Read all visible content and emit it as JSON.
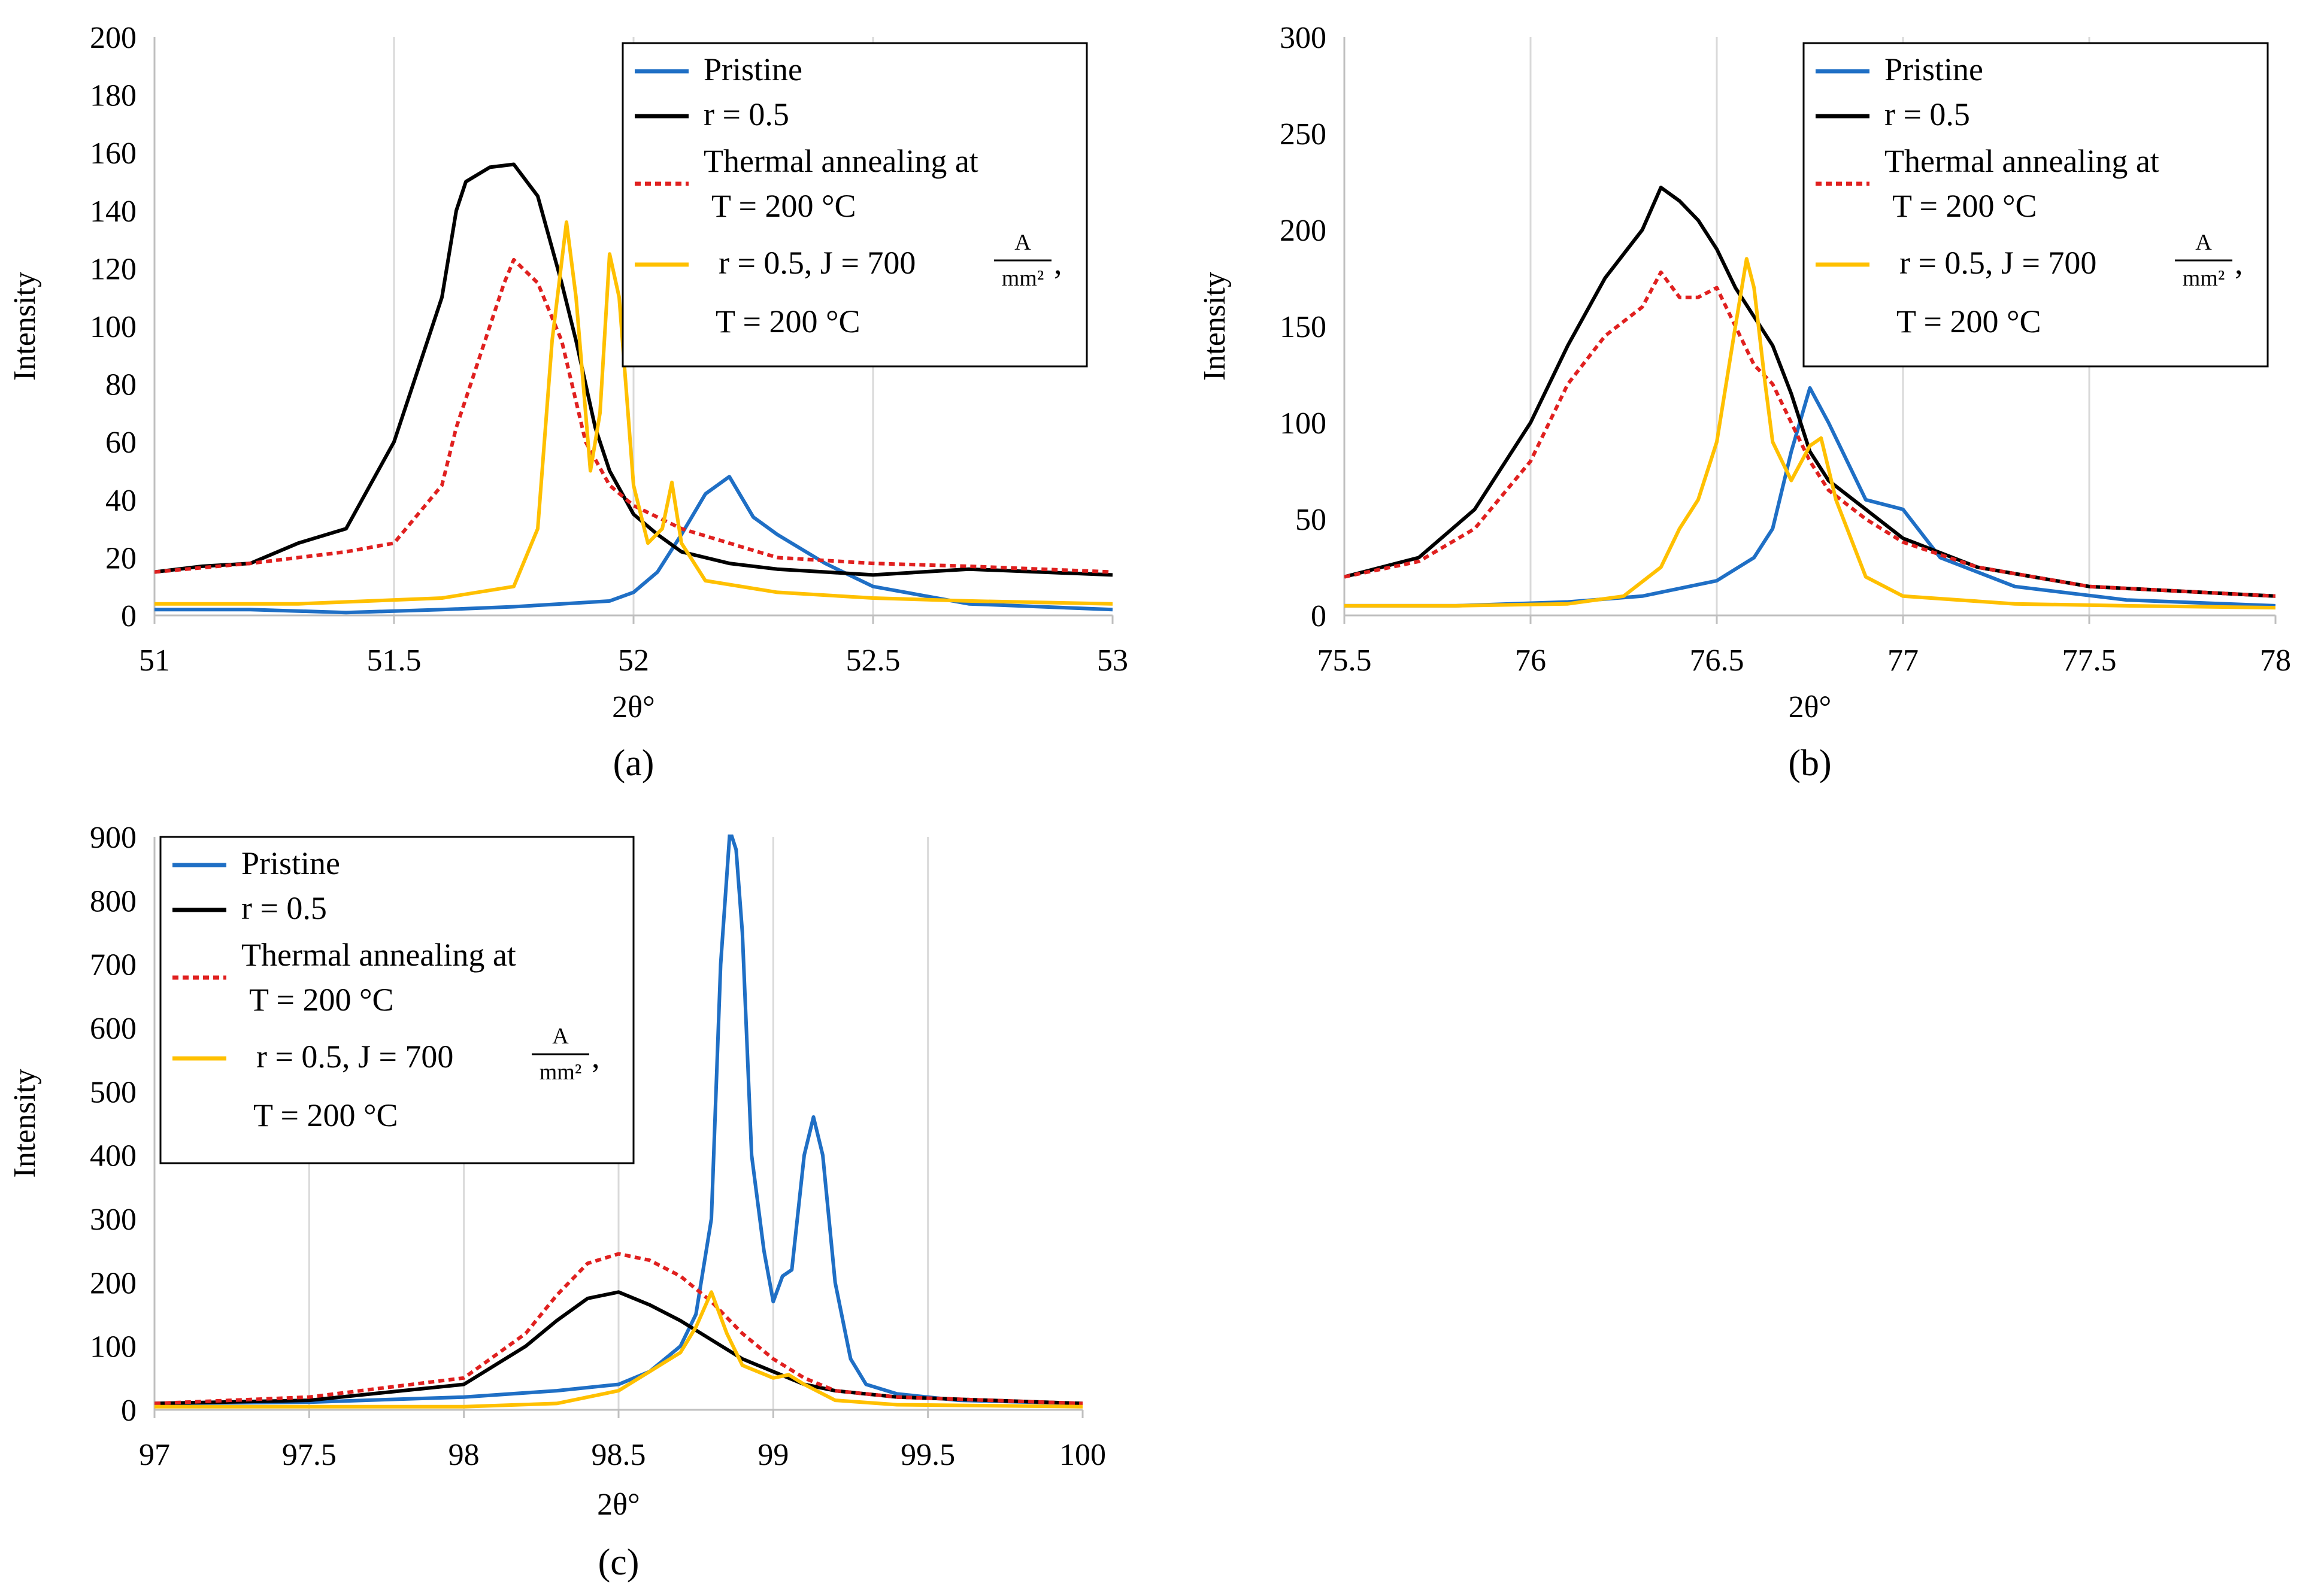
{
  "chart_data": [
    {
      "type": "line",
      "panel_label": "(a)",
      "xlabel": "2θ°",
      "ylabel": "Intensity",
      "xlim": [
        51,
        53
      ],
      "ylim": [
        0,
        200
      ],
      "xticks": [
        51,
        51.5,
        52,
        52.5,
        53
      ],
      "xtick_labels": [
        "51",
        "51.5",
        "52",
        "52.5",
        "53"
      ],
      "yticks": [
        0,
        20,
        40,
        60,
        80,
        100,
        120,
        140,
        160,
        180,
        200
      ],
      "ytick_labels": [
        "0",
        "20",
        "40",
        "60",
        "80",
        "100",
        "120",
        "140",
        "160",
        "180",
        "200"
      ],
      "grid": "vertical",
      "legend_position": "top-right",
      "legend": [
        {
          "text": "Pristine",
          "series": 0
        },
        {
          "text": "r = 0.5",
          "series": 1
        },
        {
          "text": "Thermal annealing at",
          "text2": "T = 200 °C",
          "series": 2
        },
        {
          "text": "r = 0.5, J = 700",
          "frac_num": "A",
          "frac_den": "mm²",
          "suffix": ",",
          "text2": "T = 200 °C",
          "series": 3
        }
      ],
      "series": [
        {
          "color": "#1f6fc5",
          "dash": "none",
          "x": [
            51.0,
            51.2,
            51.4,
            51.6,
            51.75,
            51.85,
            51.95,
            52.0,
            52.05,
            52.1,
            52.15,
            52.2,
            52.25,
            52.3,
            52.4,
            52.5,
            52.7,
            53.0
          ],
          "y": [
            2,
            2,
            1,
            2,
            3,
            4,
            5,
            8,
            15,
            28,
            42,
            48,
            34,
            28,
            18,
            10,
            4,
            2
          ]
        },
        {
          "color": "#000000",
          "dash": "none",
          "x": [
            51.0,
            51.1,
            51.2,
            51.3,
            51.4,
            51.45,
            51.5,
            51.55,
            51.6,
            51.63,
            51.65,
            51.7,
            51.75,
            51.8,
            51.85,
            51.88,
            51.92,
            51.95,
            52.0,
            52.05,
            52.1,
            52.2,
            52.3,
            52.4,
            52.5,
            52.7,
            53.0
          ],
          "y": [
            15,
            17,
            18,
            25,
            30,
            45,
            60,
            85,
            110,
            140,
            150,
            155,
            156,
            145,
            115,
            95,
            65,
            50,
            35,
            28,
            22,
            18,
            16,
            15,
            14,
            16,
            14
          ]
        },
        {
          "color": "#e0201f",
          "dash": "10,7",
          "x": [
            51.0,
            51.2,
            51.4,
            51.5,
            51.55,
            51.6,
            51.63,
            51.65,
            51.7,
            51.73,
            51.75,
            51.8,
            51.85,
            51.9,
            51.95,
            52.0,
            52.1,
            52.2,
            52.3,
            52.5,
            52.7,
            53.0
          ],
          "y": [
            15,
            18,
            22,
            25,
            35,
            45,
            65,
            75,
            100,
            115,
            123,
            115,
            95,
            60,
            45,
            38,
            30,
            25,
            20,
            18,
            17,
            15
          ]
        },
        {
          "color": "#ffc000",
          "dash": "none",
          "x": [
            51.0,
            51.3,
            51.6,
            51.75,
            51.8,
            51.83,
            51.86,
            51.88,
            51.91,
            51.93,
            51.95,
            51.97,
            52.0,
            52.03,
            52.06,
            52.08,
            52.1,
            52.15,
            52.3,
            52.5,
            52.7,
            53.0
          ],
          "y": [
            4,
            4,
            6,
            10,
            30,
            95,
            136,
            110,
            50,
            70,
            125,
            110,
            45,
            25,
            30,
            46,
            25,
            12,
            8,
            6,
            5,
            4
          ]
        }
      ]
    },
    {
      "type": "line",
      "panel_label": "(b)",
      "xlabel": "2θ°",
      "ylabel": "Intensity",
      "xlim": [
        75.5,
        78
      ],
      "ylim": [
        0,
        300
      ],
      "xticks": [
        75.5,
        76,
        76.5,
        77,
        77.5,
        78
      ],
      "xtick_labels": [
        "75.5",
        "76",
        "76.5",
        "77",
        "77.5",
        "78"
      ],
      "yticks": [
        0,
        50,
        100,
        150,
        200,
        250,
        300
      ],
      "ytick_labels": [
        "0",
        "50",
        "100",
        "150",
        "200",
        "250",
        "300"
      ],
      "grid": "vertical",
      "legend_position": "top-right",
      "legend": [
        {
          "text": "Pristine",
          "series": 0
        },
        {
          "text": "r = 0.5",
          "series": 1
        },
        {
          "text": "Thermal annealing at",
          "text2": "T = 200 °C",
          "series": 2
        },
        {
          "text": "r = 0.5, J = 700",
          "frac_num": "A",
          "frac_den": "mm²",
          "suffix": ",",
          "text2": "T = 200 °C",
          "series": 3
        }
      ],
      "series": [
        {
          "color": "#1f6fc5",
          "dash": "none",
          "x": [
            75.5,
            75.8,
            76.1,
            76.3,
            76.4,
            76.5,
            76.6,
            76.65,
            76.7,
            76.75,
            76.8,
            76.85,
            76.9,
            77.0,
            77.1,
            77.3,
            77.6,
            78.0
          ],
          "y": [
            5,
            5,
            7,
            10,
            14,
            18,
            30,
            45,
            85,
            118,
            100,
            80,
            60,
            55,
            30,
            15,
            8,
            5
          ]
        },
        {
          "color": "#000000",
          "dash": "none",
          "x": [
            75.5,
            75.7,
            75.85,
            76.0,
            76.1,
            76.2,
            76.3,
            76.35,
            76.4,
            76.45,
            76.5,
            76.55,
            76.6,
            76.65,
            76.7,
            76.75,
            76.8,
            76.9,
            77.0,
            77.2,
            77.5,
            78.0
          ],
          "y": [
            20,
            30,
            55,
            100,
            140,
            175,
            200,
            222,
            215,
            205,
            190,
            170,
            155,
            140,
            115,
            85,
            70,
            55,
            40,
            25,
            15,
            10
          ]
        },
        {
          "color": "#e0201f",
          "dash": "10,7",
          "x": [
            75.5,
            75.7,
            75.85,
            76.0,
            76.1,
            76.2,
            76.3,
            76.35,
            76.4,
            76.45,
            76.5,
            76.55,
            76.6,
            76.65,
            76.7,
            76.75,
            76.8,
            76.9,
            77.0,
            77.2,
            77.5,
            78.0
          ],
          "y": [
            20,
            28,
            45,
            80,
            120,
            145,
            160,
            178,
            165,
            165,
            170,
            150,
            130,
            120,
            100,
            80,
            65,
            50,
            38,
            25,
            15,
            10
          ]
        },
        {
          "color": "#ffc000",
          "dash": "none",
          "x": [
            75.5,
            75.8,
            76.1,
            76.25,
            76.35,
            76.4,
            76.45,
            76.5,
            76.55,
            76.58,
            76.6,
            76.63,
            76.65,
            76.7,
            76.75,
            76.78,
            76.82,
            76.9,
            77.0,
            77.3,
            77.6,
            78.0
          ],
          "y": [
            5,
            5,
            6,
            10,
            25,
            45,
            60,
            90,
            150,
            185,
            170,
            120,
            90,
            70,
            88,
            92,
            60,
            20,
            10,
            6,
            5,
            4
          ]
        }
      ]
    },
    {
      "type": "line",
      "panel_label": "(c)",
      "xlabel": "2θ°",
      "ylabel": "Intensity",
      "xlim": [
        97,
        100
      ],
      "ylim": [
        0,
        900
      ],
      "xticks": [
        97,
        97.5,
        98,
        98.5,
        99,
        99.5,
        100
      ],
      "xtick_labels": [
        "97",
        "97.5",
        "98",
        "98.5",
        "99",
        "99.5",
        "100"
      ],
      "yticks": [
        0,
        100,
        200,
        300,
        400,
        500,
        600,
        700,
        800,
        900
      ],
      "ytick_labels": [
        "0",
        "100",
        "200",
        "300",
        "400",
        "500",
        "600",
        "700",
        "800",
        "900"
      ],
      "grid": "vertical",
      "legend_position": "top-left",
      "legend": [
        {
          "text": "Pristine",
          "series": 0
        },
        {
          "text": "r = 0.5",
          "series": 1
        },
        {
          "text": "Thermal annealing at",
          "text2": "T = 200 °C",
          "series": 2
        },
        {
          "text": "r = 0.5, J = 700",
          "frac_num": "A",
          "frac_den": "mm²",
          "suffix": ",",
          "text2": "T = 200 °C",
          "series": 3
        }
      ],
      "series": [
        {
          "color": "#1f6fc5",
          "dash": "none",
          "x": [
            97.0,
            97.5,
            98.0,
            98.3,
            98.5,
            98.6,
            98.7,
            98.75,
            98.8,
            98.83,
            98.86,
            98.88,
            98.9,
            98.93,
            98.97,
            99.0,
            99.03,
            99.06,
            99.1,
            99.13,
            99.16,
            99.2,
            99.25,
            99.3,
            99.4,
            99.6,
            100.0
          ],
          "y": [
            10,
            12,
            20,
            30,
            40,
            60,
            100,
            150,
            300,
            700,
            910,
            880,
            750,
            400,
            250,
            170,
            210,
            220,
            400,
            460,
            400,
            200,
            80,
            40,
            25,
            15,
            10
          ]
        },
        {
          "color": "#000000",
          "dash": "none",
          "x": [
            97.0,
            97.5,
            98.0,
            98.2,
            98.3,
            98.4,
            98.5,
            98.6,
            98.7,
            98.8,
            98.9,
            99.0,
            99.1,
            99.2,
            99.4,
            99.7,
            100.0
          ],
          "y": [
            10,
            15,
            40,
            100,
            140,
            175,
            185,
            165,
            140,
            110,
            80,
            60,
            40,
            30,
            20,
            15,
            10
          ]
        },
        {
          "color": "#e0201f",
          "dash": "10,7",
          "x": [
            97.0,
            97.5,
            98.0,
            98.2,
            98.3,
            98.4,
            98.5,
            98.6,
            98.7,
            98.8,
            98.9,
            99.0,
            99.1,
            99.2,
            99.4,
            99.7,
            100.0
          ],
          "y": [
            10,
            20,
            50,
            120,
            180,
            230,
            245,
            235,
            210,
            170,
            120,
            80,
            50,
            30,
            20,
            15,
            10
          ]
        },
        {
          "color": "#ffc000",
          "dash": "none",
          "x": [
            97.0,
            97.5,
            98.0,
            98.3,
            98.5,
            98.6,
            98.7,
            98.75,
            98.8,
            98.85,
            98.9,
            98.95,
            99.0,
            99.05,
            99.1,
            99.2,
            99.4,
            100.0
          ],
          "y": [
            5,
            5,
            5,
            10,
            30,
            60,
            90,
            130,
            185,
            120,
            70,
            60,
            50,
            55,
            40,
            15,
            8,
            5
          ]
        }
      ]
    }
  ]
}
